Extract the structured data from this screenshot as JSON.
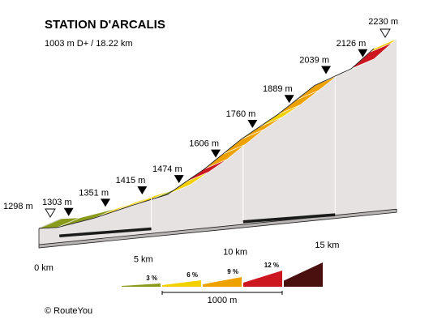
{
  "chart_data": {
    "type": "area",
    "title": "STATION D'ARCALIS",
    "subtitle": "1003 m D+ / 18.22 km",
    "distance_unit": "km",
    "elevation_unit": "m",
    "x_ticks": [
      0,
      5,
      10,
      15
    ],
    "x_tick_labels": [
      "0 km",
      "5 km",
      "10 km",
      "15 km"
    ],
    "waypoints": [
      {
        "km": 0.0,
        "elevation": 1298,
        "label": "1298 m",
        "marker": "start"
      },
      {
        "km": 1.0,
        "elevation": 1303,
        "label": "1303 m",
        "marker": "point"
      },
      {
        "km": 3.0,
        "elevation": 1351,
        "label": "1351 m",
        "marker": "point"
      },
      {
        "km": 5.0,
        "elevation": 1415,
        "label": "1415 m",
        "marker": "point"
      },
      {
        "km": 7.0,
        "elevation": 1474,
        "label": "1474 m",
        "marker": "point"
      },
      {
        "km": 9.0,
        "elevation": 1606,
        "label": "1606 m",
        "marker": "point"
      },
      {
        "km": 11.0,
        "elevation": 1760,
        "label": "1760 m",
        "marker": "point"
      },
      {
        "km": 13.0,
        "elevation": 1889,
        "label": "1889 m",
        "marker": "point"
      },
      {
        "km": 15.0,
        "elevation": 2039,
        "label": "2039 m",
        "marker": "point"
      },
      {
        "km": 17.0,
        "elevation": 2126,
        "label": "2126 m",
        "marker": "point"
      },
      {
        "km": 18.22,
        "elevation": 2230,
        "label": "2230 m",
        "marker": "end"
      }
    ],
    "segments": [
      {
        "km_start": 0,
        "km_end": 1,
        "grade_class": 0
      },
      {
        "km_start": 1,
        "km_end": 3,
        "grade_class": 0
      },
      {
        "km_start": 3,
        "km_end": 4,
        "grade_class": 1
      },
      {
        "km_start": 4,
        "km_end": 5,
        "grade_class": 1
      },
      {
        "km_start": 5,
        "km_end": 6,
        "grade_class": 1
      },
      {
        "km_start": 6,
        "km_end": 7,
        "grade_class": 0
      },
      {
        "km_start": 7,
        "km_end": 8,
        "grade_class": 1
      },
      {
        "km_start": 8,
        "km_end": 9,
        "grade_class": 3
      },
      {
        "km_start": 9,
        "km_end": 10,
        "grade_class": 2
      },
      {
        "km_start": 10,
        "km_end": 11,
        "grade_class": 2
      },
      {
        "km_start": 11,
        "km_end": 12,
        "grade_class": 2
      },
      {
        "km_start": 12,
        "km_end": 13,
        "grade_class": 1
      },
      {
        "km_start": 13,
        "km_end": 14,
        "grade_class": 2
      },
      {
        "km_start": 14,
        "km_end": 15,
        "grade_class": 2
      },
      {
        "km_start": 15,
        "km_end": 16,
        "grade_class": 2
      },
      {
        "km_start": 16,
        "km_end": 17,
        "grade_class": 0
      },
      {
        "km_start": 17,
        "km_end": 18,
        "grade_class": 3
      },
      {
        "km_start": 18,
        "km_end": 18.22,
        "grade_class": 1
      }
    ],
    "grade_legend": [
      {
        "label": "3 %",
        "color": "#8a9a1b"
      },
      {
        "label": "6 %",
        "color": "#f5d000"
      },
      {
        "label": "9 %",
        "color": "#eea200"
      },
      {
        "label": "12 %",
        "color": "#cc1620"
      },
      {
        "label": "",
        "color": "#4a1010"
      }
    ],
    "legend_scale_label": "1000 m"
  },
  "colors": {
    "side_fill": "#e7e2e2",
    "base_dark": "#1a1a1a",
    "outline": "#222222"
  },
  "credit": "© RouteYou"
}
